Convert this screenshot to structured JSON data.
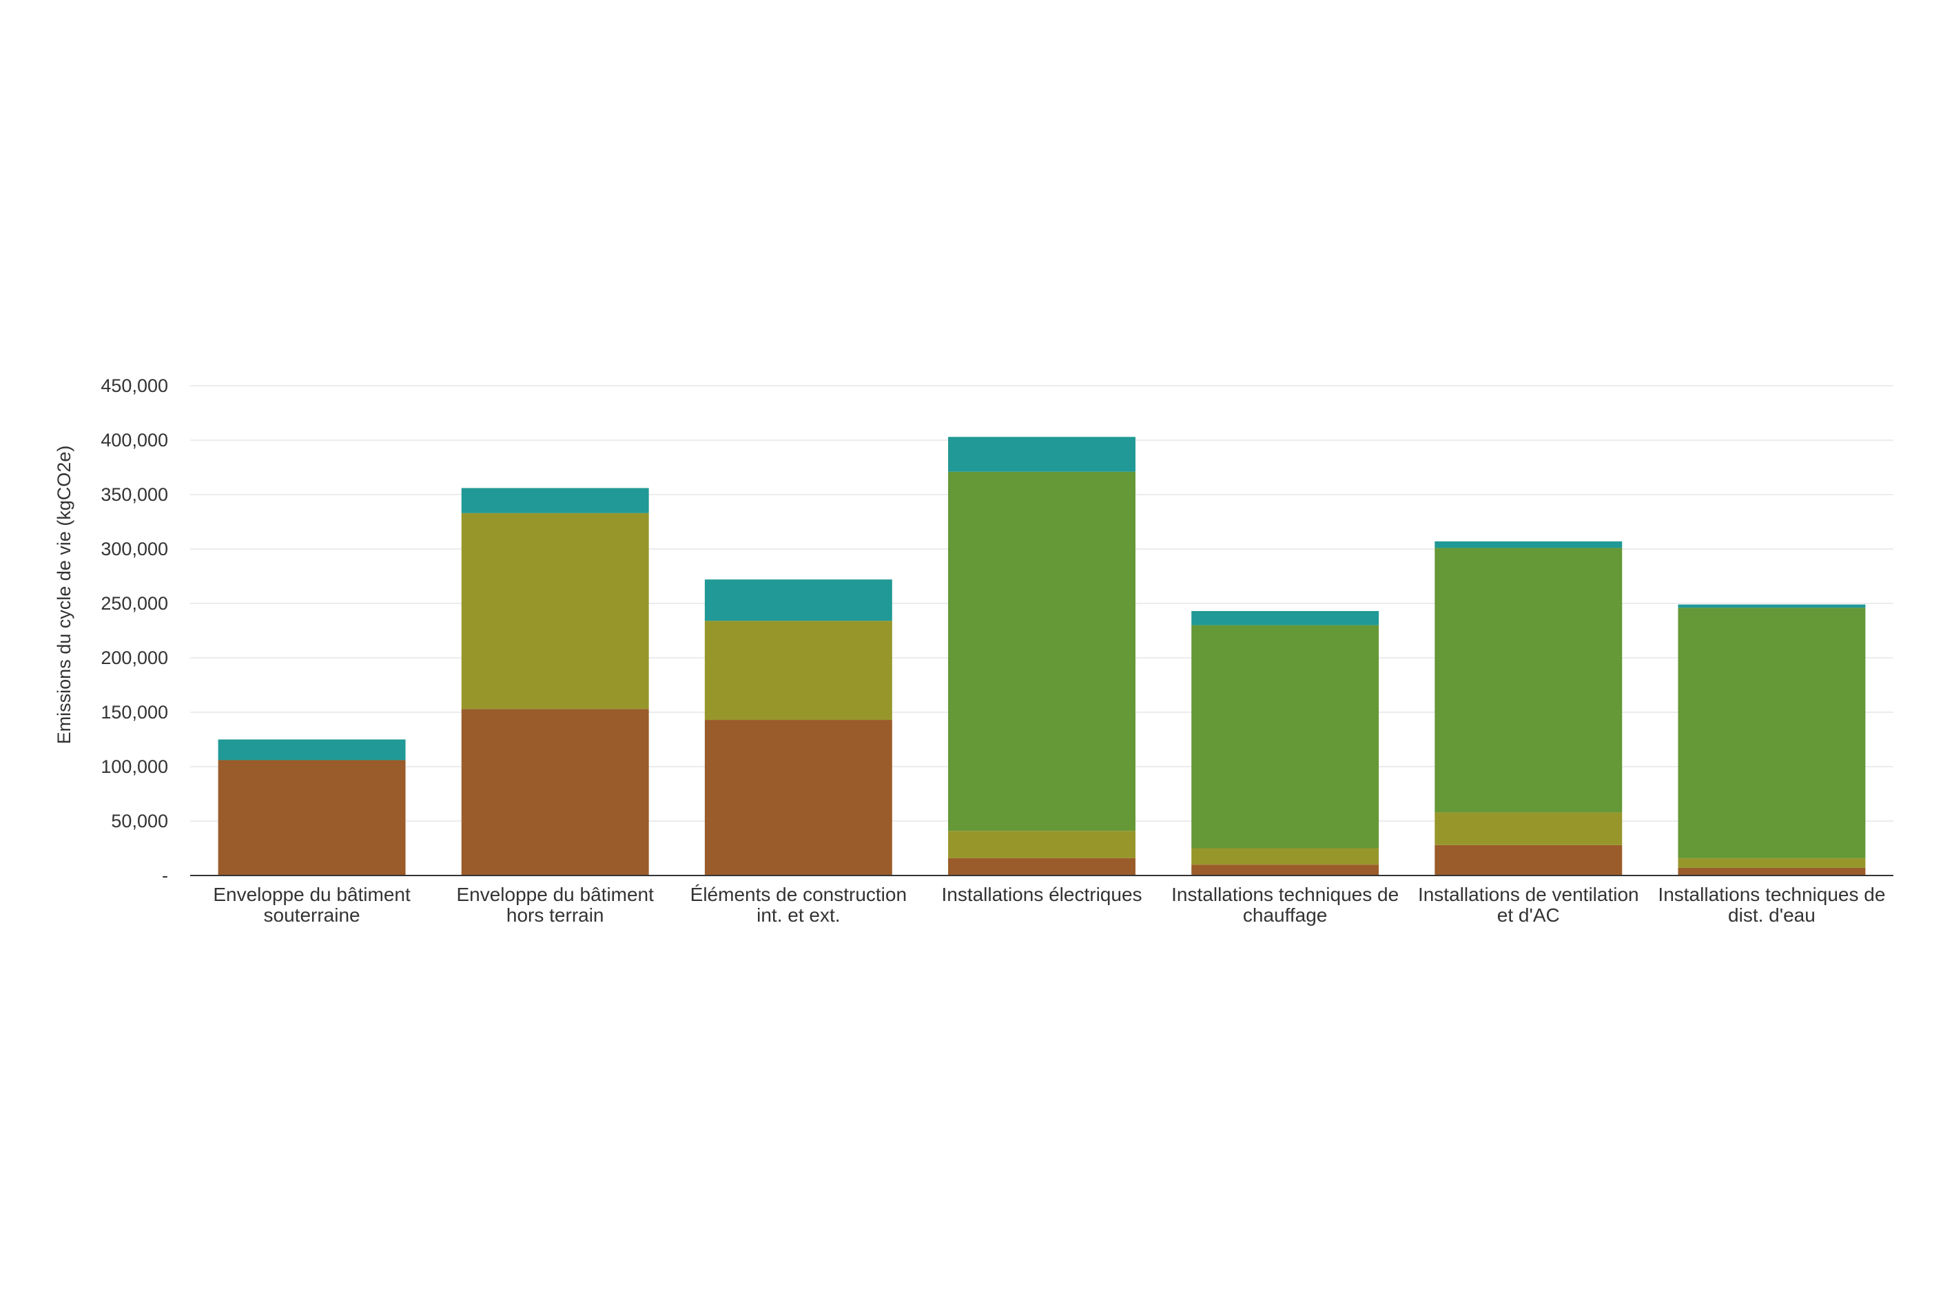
{
  "chart_data": {
    "type": "bar",
    "stacked": true,
    "ylabel": "Emissions du cycle de vie (kgCO2e)",
    "ylim": [
      0,
      450000
    ],
    "yticks": [
      0,
      50000,
      100000,
      150000,
      200000,
      250000,
      300000,
      350000,
      400000,
      450000
    ],
    "ytick_labels": [
      "-",
      "50,000",
      "100,000",
      "150,000",
      "200,000",
      "250,000",
      "300,000",
      "350,000",
      "400,000",
      "450,000"
    ],
    "grid": true,
    "legend": "none",
    "categories": [
      [
        "Enveloppe du bâtiment",
        "souterraine"
      ],
      [
        "Enveloppe du bâtiment",
        "hors terrain"
      ],
      [
        "Éléments de construction",
        "int. et ext."
      ],
      [
        "Installations électriques"
      ],
      [
        "Installations techniques de",
        "chauffage"
      ],
      [
        "Installations de ventilation",
        "et d'AC"
      ],
      [
        "Installations techniques de",
        "dist. d'eau"
      ]
    ],
    "series": [
      {
        "color": "#9a5c2a",
        "values": [
          106000,
          153000,
          143000,
          16000,
          10000,
          28000,
          7000
        ]
      },
      {
        "color": "#97962b",
        "values": [
          0,
          180000,
          91000,
          25000,
          15000,
          30000,
          9000
        ]
      },
      {
        "color": "#659836",
        "values": [
          0,
          0,
          0,
          330000,
          205000,
          243000,
          230000
        ]
      },
      {
        "color": "#219996",
        "values": [
          19000,
          23000,
          38000,
          32000,
          13000,
          6000,
          3000
        ]
      }
    ]
  }
}
